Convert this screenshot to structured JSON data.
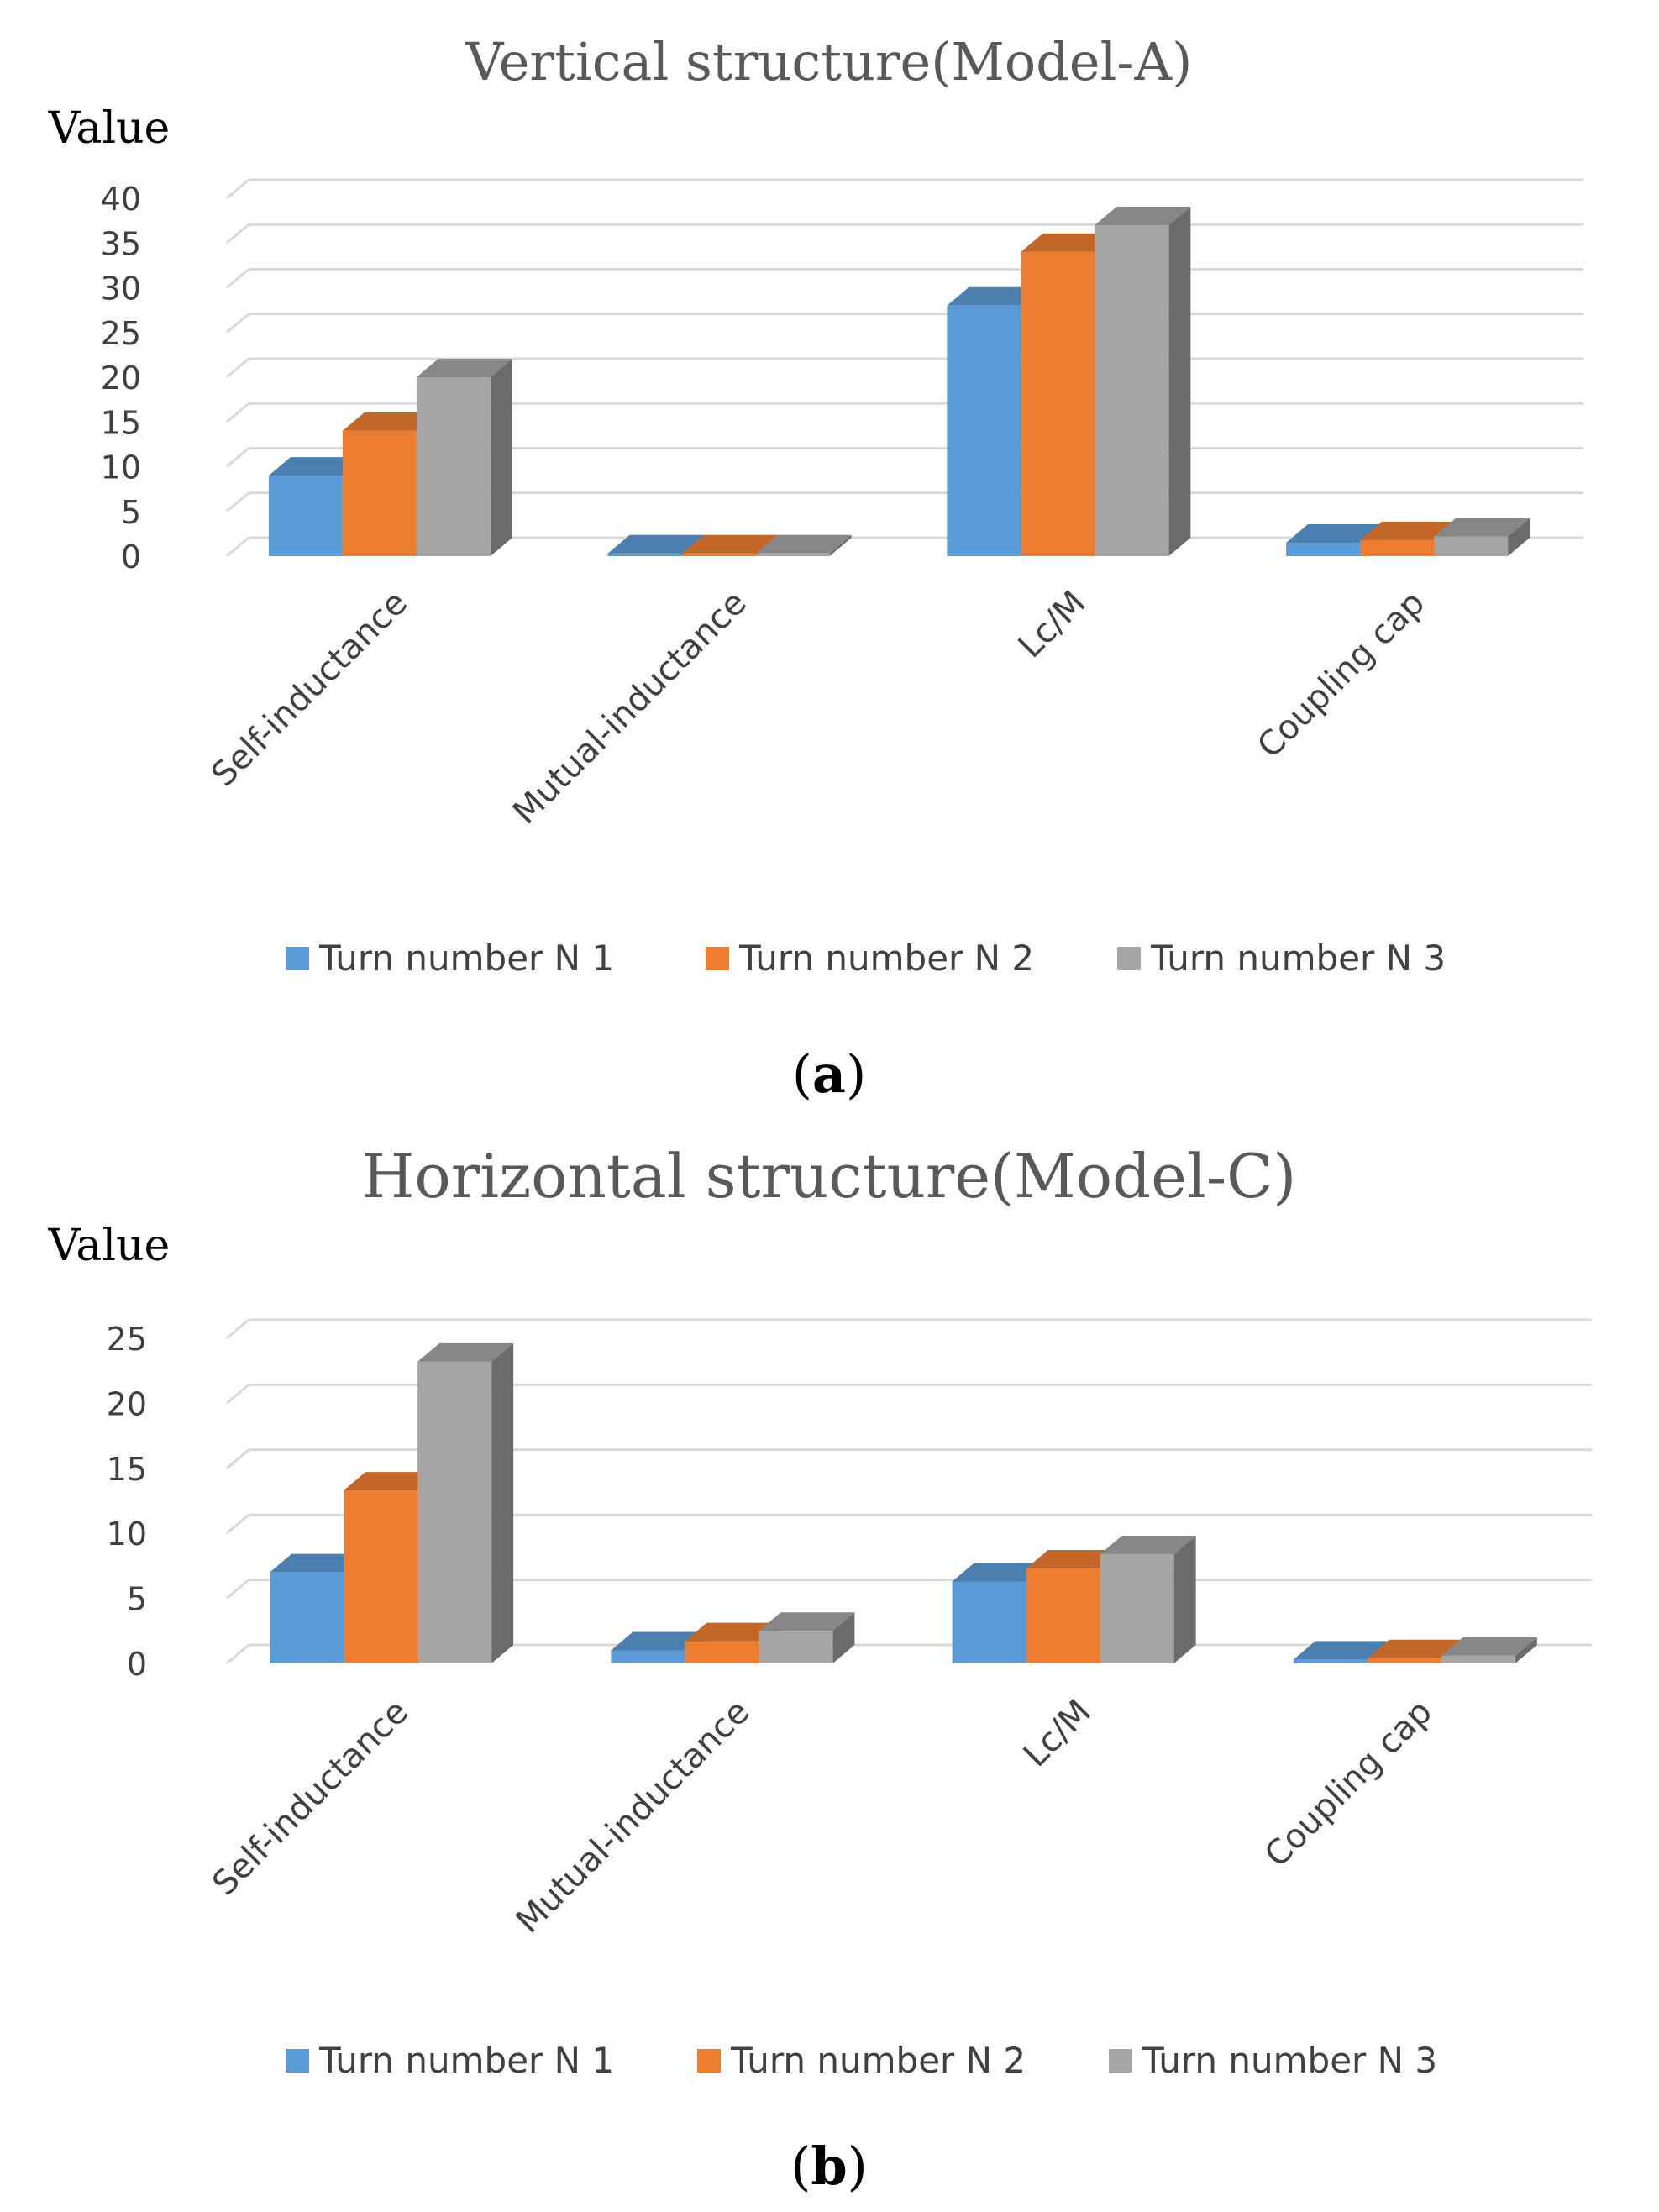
{
  "figure": {
    "panels": [
      {
        "label_open": "(",
        "label_letter": "a",
        "label_close": ")"
      },
      {
        "label_open": "(",
        "label_letter": "b",
        "label_close": ")"
      }
    ]
  },
  "colors": {
    "series": [
      "#5b9bd5",
      "#ed7d31",
      "#a5a5a5"
    ],
    "title": "#595959",
    "tick": "#404040",
    "grid": "#d9d9d9"
  },
  "chart_data": [
    {
      "type": "bar",
      "title": "Vertical structure(Model-A)",
      "ylabel": "Value",
      "xlabel": "",
      "categories": [
        "Self-inductance",
        "Mutual-inductance",
        "Lc/M",
        "Coupling cap"
      ],
      "series": [
        {
          "name": "Turn number N 1",
          "values": [
            9,
            0.3,
            28,
            1.5
          ]
        },
        {
          "name": "Turn number N 2",
          "values": [
            14,
            0.3,
            34,
            1.8
          ]
        },
        {
          "name": "Turn number N 3",
          "values": [
            20,
            0.3,
            37,
            2.2
          ]
        }
      ],
      "ylim": [
        0,
        40
      ],
      "yticks": [
        0,
        5,
        10,
        15,
        20,
        25,
        30,
        35,
        40
      ],
      "grid": true,
      "legend": "bottom"
    },
    {
      "type": "bar",
      "title": "Horizontal structure(Model-C)",
      "ylabel": "Value",
      "xlabel": "",
      "categories": [
        "Self-inductance",
        "Mutual-inductance",
        "Lc/M",
        "Coupling cap"
      ],
      "series": [
        {
          "name": "Turn number N 1",
          "values": [
            7,
            1,
            6.3,
            0.3
          ]
        },
        {
          "name": "Turn number N 2",
          "values": [
            13.3,
            1.7,
            7.3,
            0.4
          ]
        },
        {
          "name": "Turn number N 3",
          "values": [
            23.2,
            2.5,
            8.4,
            0.6
          ]
        }
      ],
      "ylim": [
        0,
        25
      ],
      "yticks": [
        0,
        5,
        10,
        15,
        20,
        25
      ],
      "grid": true,
      "legend": "bottom"
    }
  ]
}
